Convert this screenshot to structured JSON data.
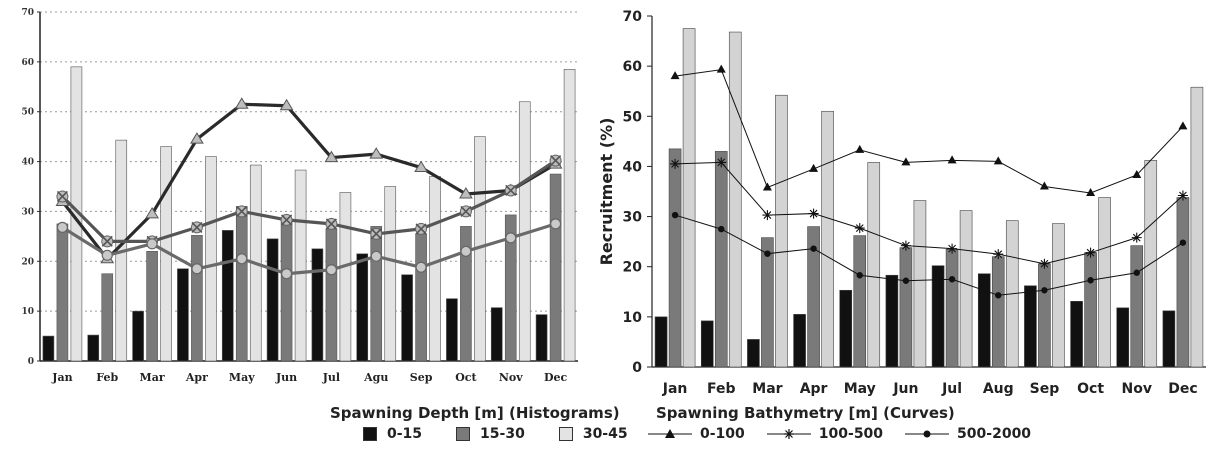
{
  "chart_data": [
    {
      "type": "bar",
      "categories": [
        "Jan",
        "Feb",
        "Mar",
        "Apr",
        "May",
        "Jun",
        "Jul",
        "Agu",
        "Sep",
        "Oct",
        "Nov",
        "Dec"
      ],
      "ylim": [
        0,
        70
      ],
      "yticks": [
        0,
        10,
        20,
        30,
        40,
        50,
        60,
        70
      ],
      "grid": "horizontal dotted",
      "legend_title": "Spawning Depth [m] (Histograms)",
      "series": [
        {
          "name": "0-15",
          "color": "#111111",
          "values": [
            5,
            5.2,
            10,
            18.5,
            26.2,
            24.5,
            22.5,
            21.5,
            17.3,
            12.5,
            10.7,
            9.3
          ]
        },
        {
          "name": "15-30",
          "color": "#7a7a7a",
          "values": [
            27.5,
            17.5,
            22,
            25.2,
            31,
            28.5,
            26.5,
            27,
            25.5,
            27,
            29.3,
            37.5
          ]
        },
        {
          "name": "30-45",
          "color": "#e3e3e3",
          "values": [
            59,
            44.3,
            43,
            41,
            39.3,
            38.3,
            33.8,
            35,
            37,
            45,
            52,
            58.5
          ]
        }
      ],
      "lines": [
        {
          "values": [
            32,
            20.5,
            29.5,
            44.5,
            51.5,
            51.2,
            40.8,
            41.5,
            38.8,
            33.5,
            34.2,
            39.5
          ],
          "color": "#2a2a2a",
          "marker": "triangle"
        },
        {
          "values": [
            33,
            24,
            24,
            26.8,
            30,
            28.3,
            27.5,
            25.5,
            26.5,
            30,
            34.2,
            40.2
          ],
          "color": "#555555",
          "marker": "x"
        },
        {
          "values": [
            26.8,
            21.2,
            23.5,
            18.5,
            20.5,
            17.5,
            18.3,
            21,
            18.8,
            22,
            24.7,
            27.5
          ],
          "color": "#6a6a6a",
          "marker": "circle"
        }
      ]
    },
    {
      "type": "bar",
      "categories": [
        "Jan",
        "Feb",
        "Mar",
        "Apr",
        "May",
        "Jun",
        "Jul",
        "Aug",
        "Sep",
        "Oct",
        "Nov",
        "Dec"
      ],
      "ylabel": "Recruitment (%)",
      "ylim": [
        0,
        70
      ],
      "yticks": [
        0,
        10,
        20,
        30,
        40,
        50,
        60,
        70
      ],
      "grid": "none",
      "series": [
        {
          "name": "0-15",
          "color": "#111111",
          "values": [
            10,
            9.2,
            5.5,
            10.5,
            15.3,
            18.3,
            20.2,
            18.6,
            16.2,
            13.1,
            11.8,
            11.2
          ]
        },
        {
          "name": "15-30",
          "color": "#7a7a7a",
          "values": [
            43.5,
            43,
            25.8,
            28,
            26.2,
            23.8,
            23.5,
            22,
            20.6,
            22.8,
            24.2,
            33.8
          ]
        },
        {
          "name": "30-45",
          "color": "#d3d3d3",
          "values": [
            67.5,
            66.8,
            54.2,
            51,
            40.8,
            33.2,
            31.2,
            29.2,
            28.6,
            33.8,
            41.2,
            55.8
          ]
        }
      ],
      "legend_title": "Spawning Bathymetry [m] (Curves)",
      "lines": [
        {
          "name": "0-100",
          "values": [
            58,
            59.3,
            35.8,
            39.5,
            43.3,
            40.8,
            41.2,
            41,
            36,
            34.7,
            38.3,
            48
          ],
          "marker": "triangle"
        },
        {
          "name": "100-500",
          "values": [
            40.5,
            40.8,
            30.3,
            30.6,
            27.7,
            24.2,
            23.6,
            22.5,
            20.6,
            22.8,
            25.8,
            34.2
          ],
          "marker": "asterisk"
        },
        {
          "name": "500-2000",
          "values": [
            30.3,
            27.5,
            22.6,
            23.6,
            18.3,
            17.2,
            17.5,
            14.3,
            15.3,
            17.3,
            18.8,
            24.8
          ],
          "marker": "dot"
        }
      ]
    }
  ]
}
